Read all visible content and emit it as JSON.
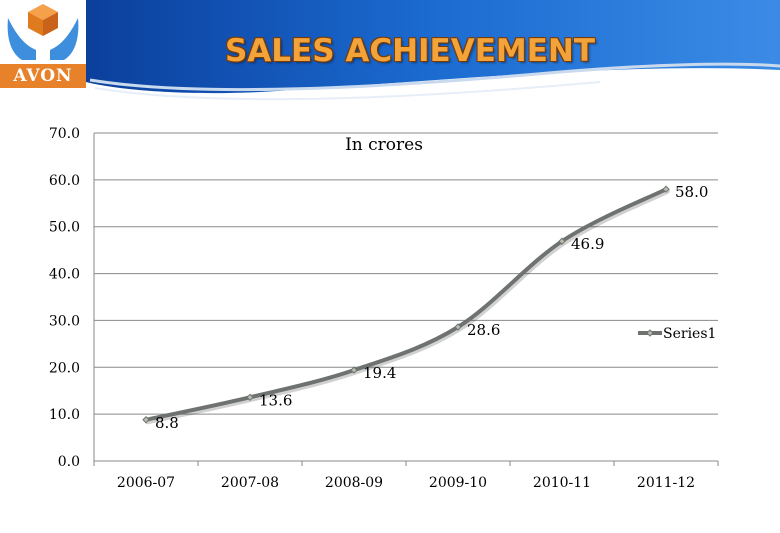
{
  "header": {
    "title": "SALES ACHIEVEMENT",
    "logo_text": "AVON"
  },
  "colors": {
    "banner_blue": "#1b6bd1",
    "title_orange": "#f2a33a",
    "logo_orange": "#e8822a",
    "series_line": "#6e7270",
    "gridline": "#8a8a8a"
  },
  "chart_data": {
    "type": "line",
    "title": "In crores",
    "categories": [
      "2006-07",
      "2007-08",
      "2008-09",
      "2009-10",
      "2010-11",
      "2011-12"
    ],
    "series": [
      {
        "name": "Series1",
        "values": [
          8.8,
          13.6,
          19.4,
          28.6,
          46.9,
          58.0
        ]
      }
    ],
    "data_labels": [
      "8.8",
      "13.6",
      "19.4",
      "28.6",
      "46.9",
      "58.0"
    ],
    "y_tick_labels": [
      "0.0",
      "10.0",
      "20.0",
      "30.0",
      "40.0",
      "50.0",
      "60.0",
      "70.0"
    ],
    "ylim": [
      0,
      70
    ],
    "y_step": 10,
    "xlabel": "",
    "ylabel": "",
    "grid": true,
    "legend_position": "right",
    "smooth": true
  }
}
